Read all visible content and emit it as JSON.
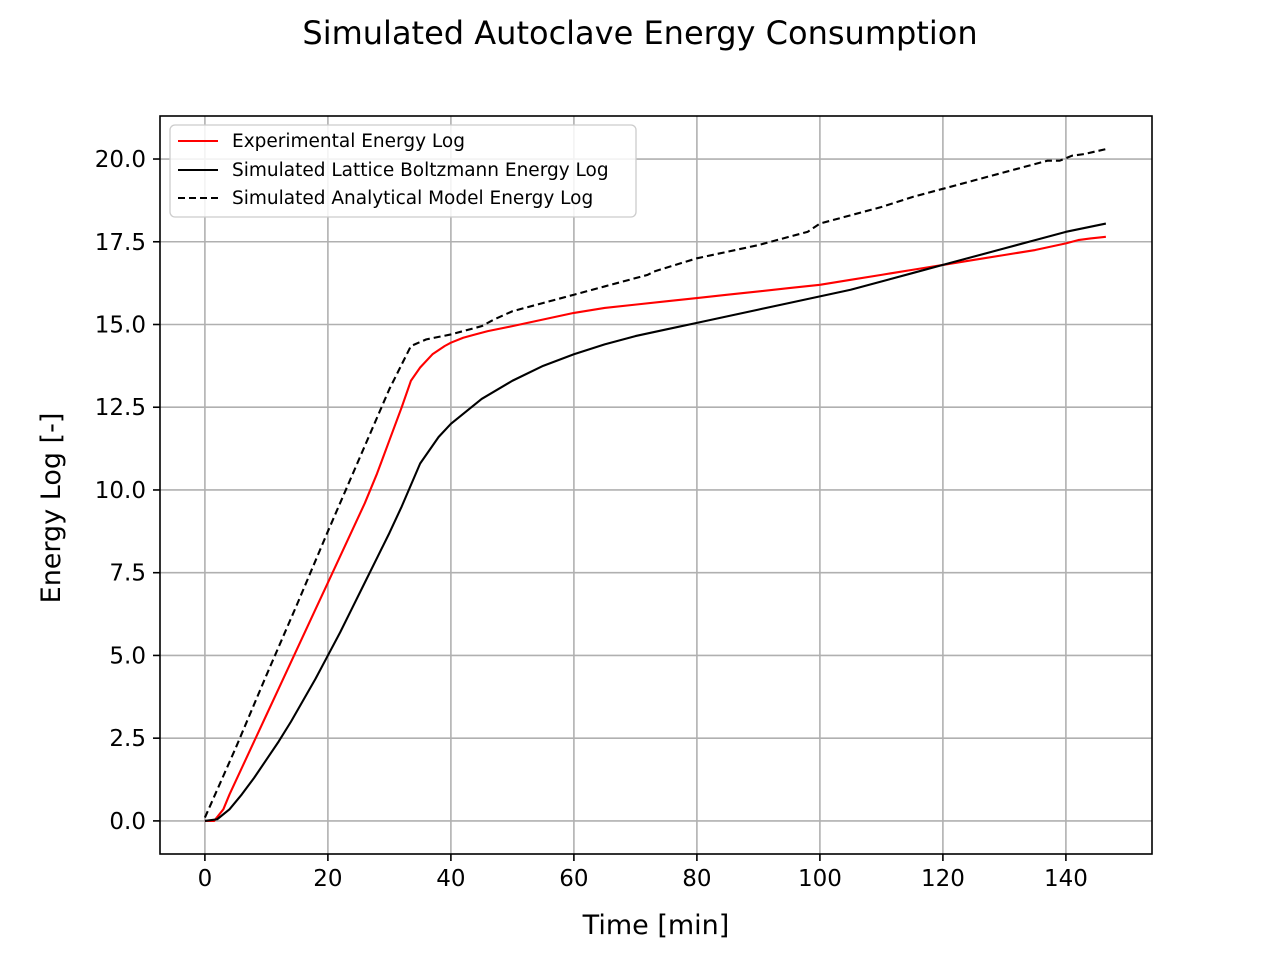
{
  "chart_data": {
    "type": "line",
    "title": "Simulated Autoclave Energy Consumption",
    "xlabel": "Time [min]",
    "ylabel": "Energy Log [-]",
    "xlim": [
      -7.3,
      154
    ],
    "ylim": [
      -1.0,
      21.3
    ],
    "xticks": [
      0,
      20,
      40,
      60,
      80,
      100,
      120,
      140
    ],
    "yticks": [
      0.0,
      2.5,
      5.0,
      7.5,
      10.0,
      12.5,
      15.0,
      17.5,
      20.0
    ],
    "xtick_labels": [
      "0",
      "20",
      "40",
      "60",
      "80",
      "100",
      "120",
      "140"
    ],
    "ytick_labels": [
      "0.0",
      "2.5",
      "5.0",
      "7.5",
      "10.0",
      "12.5",
      "15.0",
      "17.5",
      "20.0"
    ],
    "grid": true,
    "legend_position": "top-left",
    "series": [
      {
        "name": "Experimental Energy Log",
        "color": "#ff0000",
        "style": "solid",
        "x": [
          0,
          1.5,
          3,
          4,
          6,
          8,
          10,
          12,
          14,
          16,
          18,
          20,
          22,
          24,
          26,
          28,
          30,
          32,
          33.5,
          35,
          37,
          39,
          40,
          42,
          44,
          46,
          50,
          55,
          60,
          65,
          70,
          75,
          80,
          85,
          90,
          95,
          100,
          105,
          110,
          115,
          120,
          125,
          130,
          135,
          140,
          142,
          144,
          146.5
        ],
        "y": [
          0,
          0,
          0.35,
          0.8,
          1.6,
          2.4,
          3.2,
          4.0,
          4.8,
          5.6,
          6.4,
          7.2,
          8.0,
          8.8,
          9.6,
          10.5,
          11.5,
          12.5,
          13.3,
          13.7,
          14.1,
          14.35,
          14.45,
          14.6,
          14.7,
          14.8,
          14.95,
          15.15,
          15.35,
          15.5,
          15.6,
          15.7,
          15.8,
          15.9,
          16.0,
          16.1,
          16.2,
          16.35,
          16.5,
          16.65,
          16.8,
          16.95,
          17.1,
          17.25,
          17.45,
          17.55,
          17.6,
          17.65
        ],
        "values_note": ""
      },
      {
        "name": "Simulated Lattice Boltzmann Energy Log",
        "color": "#000000",
        "style": "solid",
        "x": [
          0,
          2,
          4,
          6,
          8,
          10,
          12,
          14,
          16,
          18,
          20,
          22,
          24,
          26,
          28,
          30,
          32,
          35,
          38,
          40,
          45,
          50,
          55,
          60,
          65,
          70,
          75,
          80,
          85,
          90,
          95,
          100,
          105,
          110,
          115,
          120,
          125,
          130,
          135,
          140,
          146.5
        ],
        "y": [
          0,
          0.05,
          0.35,
          0.8,
          1.3,
          1.85,
          2.4,
          3.0,
          3.65,
          4.3,
          5.0,
          5.7,
          6.45,
          7.2,
          7.95,
          8.7,
          9.5,
          10.8,
          11.6,
          12.0,
          12.75,
          13.3,
          13.75,
          14.1,
          14.4,
          14.65,
          14.85,
          15.05,
          15.25,
          15.45,
          15.65,
          15.85,
          16.05,
          16.3,
          16.55,
          16.8,
          17.05,
          17.3,
          17.55,
          17.8,
          18.05
        ]
      },
      {
        "name": "Simulated Analytical Model Energy Log",
        "color": "#000000",
        "style": "dashed",
        "x": [
          0,
          5,
          10,
          15,
          20,
          25,
          30,
          33.5,
          36,
          40,
          45,
          47,
          50,
          55,
          60,
          65,
          70,
          72,
          73,
          80,
          90,
          98,
          100,
          105,
          110,
          115,
          120,
          125,
          130,
          135,
          137,
          139,
          141,
          143,
          146.5
        ],
        "y": [
          0.1,
          2.2,
          4.4,
          6.55,
          8.75,
          10.9,
          13.05,
          14.35,
          14.55,
          14.7,
          14.95,
          15.15,
          15.4,
          15.65,
          15.9,
          16.15,
          16.4,
          16.5,
          16.6,
          17.0,
          17.4,
          17.8,
          18.05,
          18.3,
          18.55,
          18.85,
          19.1,
          19.35,
          19.6,
          19.85,
          19.95,
          19.95,
          20.1,
          20.15,
          20.3
        ]
      }
    ]
  }
}
